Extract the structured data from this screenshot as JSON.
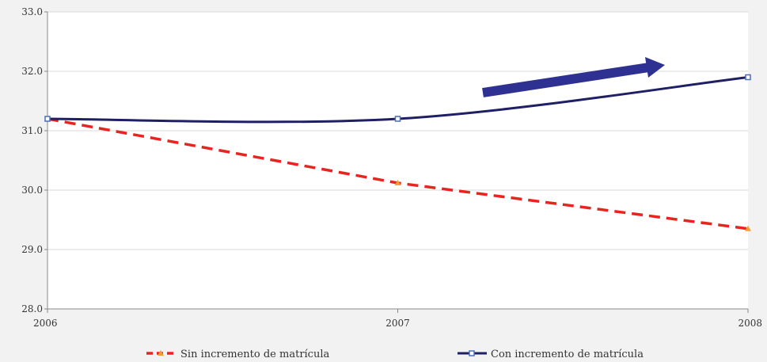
{
  "chart_data": {
    "type": "line",
    "x": [
      "2006",
      "2007",
      "2008"
    ],
    "ylim": [
      28.0,
      33.0
    ],
    "y_ticks": [
      "28.0",
      "29.0",
      "30.0",
      "31.0",
      "32.0",
      "33.0"
    ],
    "grid": true,
    "legend_position": "bottom",
    "series": [
      {
        "name": "Sin incremento de matrícula",
        "values": [
          31.2,
          30.12,
          29.35
        ],
        "color": "#e8241e",
        "style": "dashed",
        "marker": "triangle",
        "marker_color": "#f0a030"
      },
      {
        "name": "Con incremento de matrícula",
        "values": [
          31.2,
          31.2,
          31.9
        ],
        "color": "#1f1f66",
        "style": "solid-smooth",
        "marker": "square",
        "marker_color": "#4a6fb5"
      }
    ],
    "annotation": {
      "type": "arrow",
      "color": "#2e3192"
    }
  }
}
